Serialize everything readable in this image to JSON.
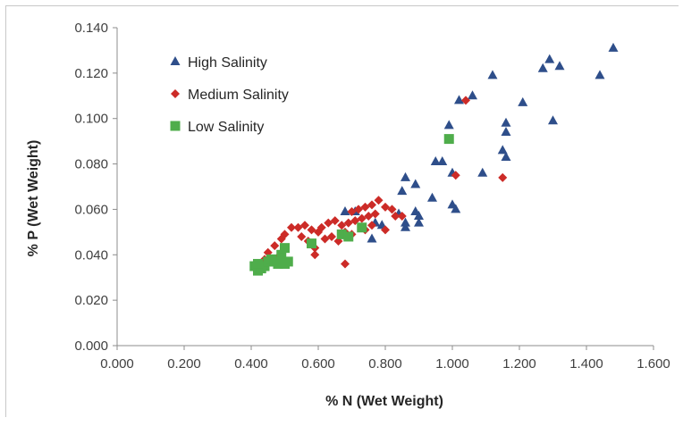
{
  "chart_data": {
    "type": "scatter",
    "xlabel": "% N (Wet Weight)",
    "ylabel": "% P (Wet Weight)",
    "xlim": [
      0,
      1.6
    ],
    "ylim": [
      0,
      0.14
    ],
    "x_ticks": [
      0,
      0.2,
      0.4,
      0.6,
      0.8,
      1.0,
      1.2,
      1.4,
      1.6
    ],
    "y_ticks": [
      0,
      0.02,
      0.04,
      0.06,
      0.08,
      0.1,
      0.12,
      0.14
    ],
    "x_tick_labels": [
      "0.000",
      "0.200",
      "0.400",
      "0.600",
      "0.800",
      "1.000",
      "1.200",
      "1.400",
      "1.600"
    ],
    "y_tick_labels": [
      "0.000",
      "0.020",
      "0.040",
      "0.060",
      "0.080",
      "0.100",
      "0.120",
      "0.140"
    ],
    "grid": false,
    "legend_position": "top-left",
    "series": [
      {
        "name": "High Salinity",
        "marker": "triangle",
        "color": "#2e4e8a",
        "points": [
          [
            1.48,
            0.131
          ],
          [
            1.29,
            0.126
          ],
          [
            1.27,
            0.122
          ],
          [
            1.32,
            0.123
          ],
          [
            1.44,
            0.119
          ],
          [
            1.12,
            0.119
          ],
          [
            1.06,
            0.11
          ],
          [
            1.02,
            0.108
          ],
          [
            1.21,
            0.107
          ],
          [
            1.3,
            0.099
          ],
          [
            0.99,
            0.097
          ],
          [
            1.16,
            0.098
          ],
          [
            1.16,
            0.094
          ],
          [
            1.15,
            0.086
          ],
          [
            1.16,
            0.083
          ],
          [
            1.09,
            0.076
          ],
          [
            0.95,
            0.081
          ],
          [
            0.97,
            0.081
          ],
          [
            1.0,
            0.076
          ],
          [
            0.86,
            0.074
          ],
          [
            0.89,
            0.071
          ],
          [
            0.85,
            0.068
          ],
          [
            0.94,
            0.065
          ],
          [
            1.0,
            0.062
          ],
          [
            1.01,
            0.06
          ],
          [
            0.89,
            0.059
          ],
          [
            0.9,
            0.057
          ],
          [
            0.86,
            0.054
          ],
          [
            0.86,
            0.052
          ],
          [
            0.9,
            0.054
          ],
          [
            0.77,
            0.054
          ],
          [
            0.79,
            0.053
          ],
          [
            0.76,
            0.047
          ],
          [
            0.84,
            0.058
          ],
          [
            0.68,
            0.059
          ],
          [
            0.71,
            0.059
          ]
        ]
      },
      {
        "name": "Medium Salinity",
        "marker": "diamond",
        "color": "#cc2b27",
        "points": [
          [
            1.04,
            0.108
          ],
          [
            1.01,
            0.075
          ],
          [
            1.15,
            0.074
          ],
          [
            0.78,
            0.064
          ],
          [
            0.76,
            0.062
          ],
          [
            0.74,
            0.061
          ],
          [
            0.72,
            0.06
          ],
          [
            0.7,
            0.059
          ],
          [
            0.8,
            0.061
          ],
          [
            0.82,
            0.06
          ],
          [
            0.77,
            0.058
          ],
          [
            0.75,
            0.057
          ],
          [
            0.73,
            0.056
          ],
          [
            0.71,
            0.055
          ],
          [
            0.69,
            0.054
          ],
          [
            0.67,
            0.053
          ],
          [
            0.65,
            0.055
          ],
          [
            0.63,
            0.054
          ],
          [
            0.61,
            0.052
          ],
          [
            0.6,
            0.05
          ],
          [
            0.58,
            0.051
          ],
          [
            0.56,
            0.053
          ],
          [
            0.54,
            0.052
          ],
          [
            0.52,
            0.052
          ],
          [
            0.5,
            0.049
          ],
          [
            0.49,
            0.047
          ],
          [
            0.47,
            0.044
          ],
          [
            0.45,
            0.041
          ],
          [
            0.44,
            0.038
          ],
          [
            0.46,
            0.037
          ],
          [
            0.48,
            0.039
          ],
          [
            0.55,
            0.048
          ],
          [
            0.57,
            0.046
          ],
          [
            0.59,
            0.043
          ],
          [
            0.59,
            0.04
          ],
          [
            0.62,
            0.047
          ],
          [
            0.64,
            0.048
          ],
          [
            0.66,
            0.046
          ],
          [
            0.68,
            0.05
          ],
          [
            0.7,
            0.049
          ],
          [
            0.74,
            0.051
          ],
          [
            0.76,
            0.053
          ],
          [
            0.8,
            0.051
          ],
          [
            0.83,
            0.057
          ],
          [
            0.85,
            0.057
          ],
          [
            0.68,
            0.036
          ]
        ]
      },
      {
        "name": "Low Salinity",
        "marker": "square",
        "color": "#4fad4b",
        "points": [
          [
            0.99,
            0.091
          ],
          [
            0.41,
            0.035
          ],
          [
            0.42,
            0.033
          ],
          [
            0.43,
            0.034
          ],
          [
            0.44,
            0.035
          ],
          [
            0.45,
            0.037
          ],
          [
            0.46,
            0.038
          ],
          [
            0.47,
            0.037
          ],
          [
            0.48,
            0.036
          ],
          [
            0.49,
            0.04
          ],
          [
            0.5,
            0.043
          ],
          [
            0.51,
            0.037
          ],
          [
            0.58,
            0.045
          ],
          [
            0.67,
            0.049
          ],
          [
            0.69,
            0.048
          ],
          [
            0.73,
            0.052
          ],
          [
            0.42,
            0.036
          ],
          [
            0.5,
            0.036
          ]
        ]
      }
    ]
  }
}
